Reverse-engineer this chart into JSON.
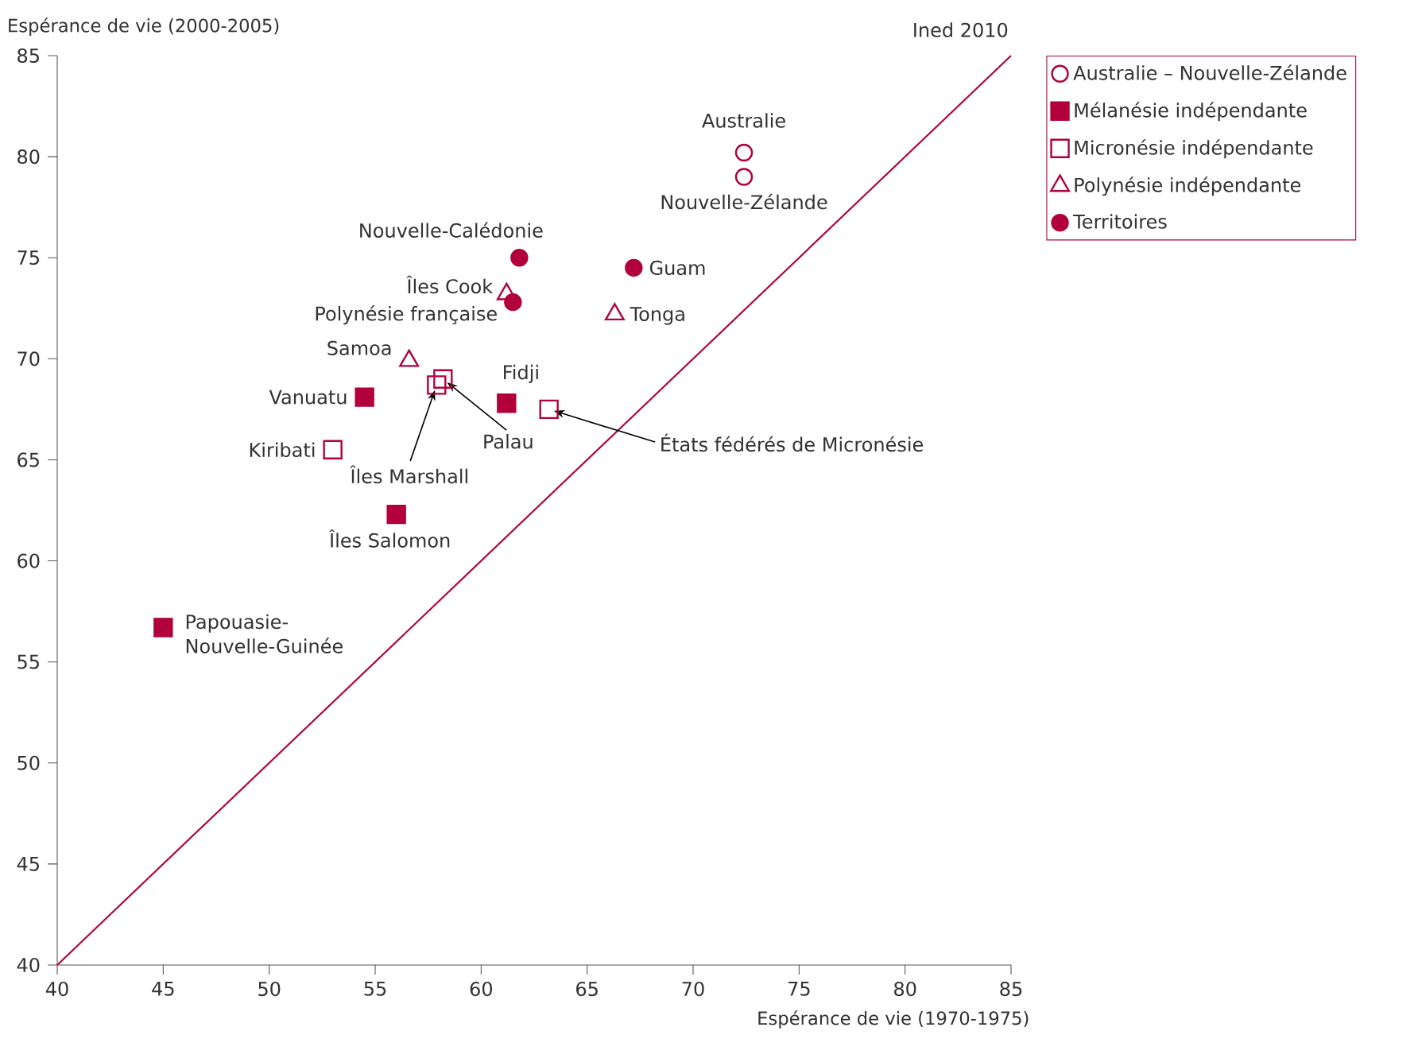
{
  "chart_data": {
    "type": "scatter",
    "xlabel": "Espérance de vie (1970-1975)",
    "ylabel": "Espérance de vie (2000-2005)",
    "xlim": [
      40,
      85
    ],
    "ylim": [
      40,
      85
    ],
    "xticks": [
      40,
      45,
      50,
      55,
      60,
      65,
      70,
      75,
      80,
      85
    ],
    "yticks": [
      40,
      45,
      50,
      55,
      60,
      65,
      70,
      75,
      80,
      85
    ],
    "grid": false,
    "legend": "right",
    "series": [
      {
        "name": "Australie – Nouvelle-Zélande",
        "color": "#b2003c",
        "marker": "circle",
        "x": [
          72.4,
          72.4
        ],
        "values": [
          80.2,
          79.0
        ]
      },
      {
        "name": "Mélanésie indépendante",
        "color": "#b2003c",
        "marker": "square",
        "x": [
          54.5,
          61.2,
          56.0,
          45.0
        ],
        "values": [
          68.1,
          67.8,
          62.3,
          56.7
        ]
      },
      {
        "name": "Micronésie indépendante",
        "color": "#b2003c",
        "marker": "square",
        "x": [
          58.2,
          57.9,
          63.2,
          53.0
        ],
        "values": [
          69.0,
          68.7,
          67.5,
          65.5
        ]
      },
      {
        "name": "Polynésie indépendante",
        "color": "#b2003c",
        "marker": "triangle",
        "x": [
          61.2,
          66.3,
          56.6
        ],
        "values": [
          73.2,
          72.2,
          69.9
        ]
      },
      {
        "name": "Territoires",
        "color": "#b2003c",
        "marker": "circle",
        "x": [
          61.8,
          67.2,
          61.5
        ],
        "values": [
          75.0,
          74.5,
          72.8
        ]
      },
      {
        "type": "line",
        "color": "#b2003c",
        "marker": "none",
        "x": [
          40,
          85
        ],
        "values": [
          40,
          85
        ]
      }
    ],
    "annotations": [
      {
        "text": "Australie",
        "x": 72.4,
        "y": 80.2
      },
      {
        "text": "Nouvelle-Zélande",
        "x": 72.4,
        "y": 79.0
      },
      {
        "text": "Nouvelle-Calédonie",
        "x": 61.8,
        "y": 75.0
      },
      {
        "text": "Guam",
        "x": 67.2,
        "y": 74.5
      },
      {
        "text": "Îles Cook",
        "x": 61.2,
        "y": 73.2
      },
      {
        "text": "Polynésie française",
        "x": 61.5,
        "y": 72.8
      },
      {
        "text": "Tonga",
        "x": 66.3,
        "y": 72.2
      },
      {
        "text": "Samoa",
        "x": 56.6,
        "y": 69.9
      },
      {
        "text": "Vanuatu",
        "x": 54.5,
        "y": 68.1
      },
      {
        "text": "Palau",
        "x": 58.2,
        "y": 69.0
      },
      {
        "text": "Îles Marshall",
        "x": 57.9,
        "y": 68.7
      },
      {
        "text": "Fidji",
        "x": 61.2,
        "y": 67.8
      },
      {
        "text": "États fédérés de Micronésie",
        "x": 63.2,
        "y": 67.5
      },
      {
        "text": "Kiribati",
        "x": 53.0,
        "y": 65.5
      },
      {
        "text": "Îles Salomon",
        "x": 56.0,
        "y": 62.3
      },
      {
        "text": "Papouasie-Nouvelle-Guinée",
        "x": 45.0,
        "y": 56.7
      },
      "Ined 2010"
    ]
  }
}
